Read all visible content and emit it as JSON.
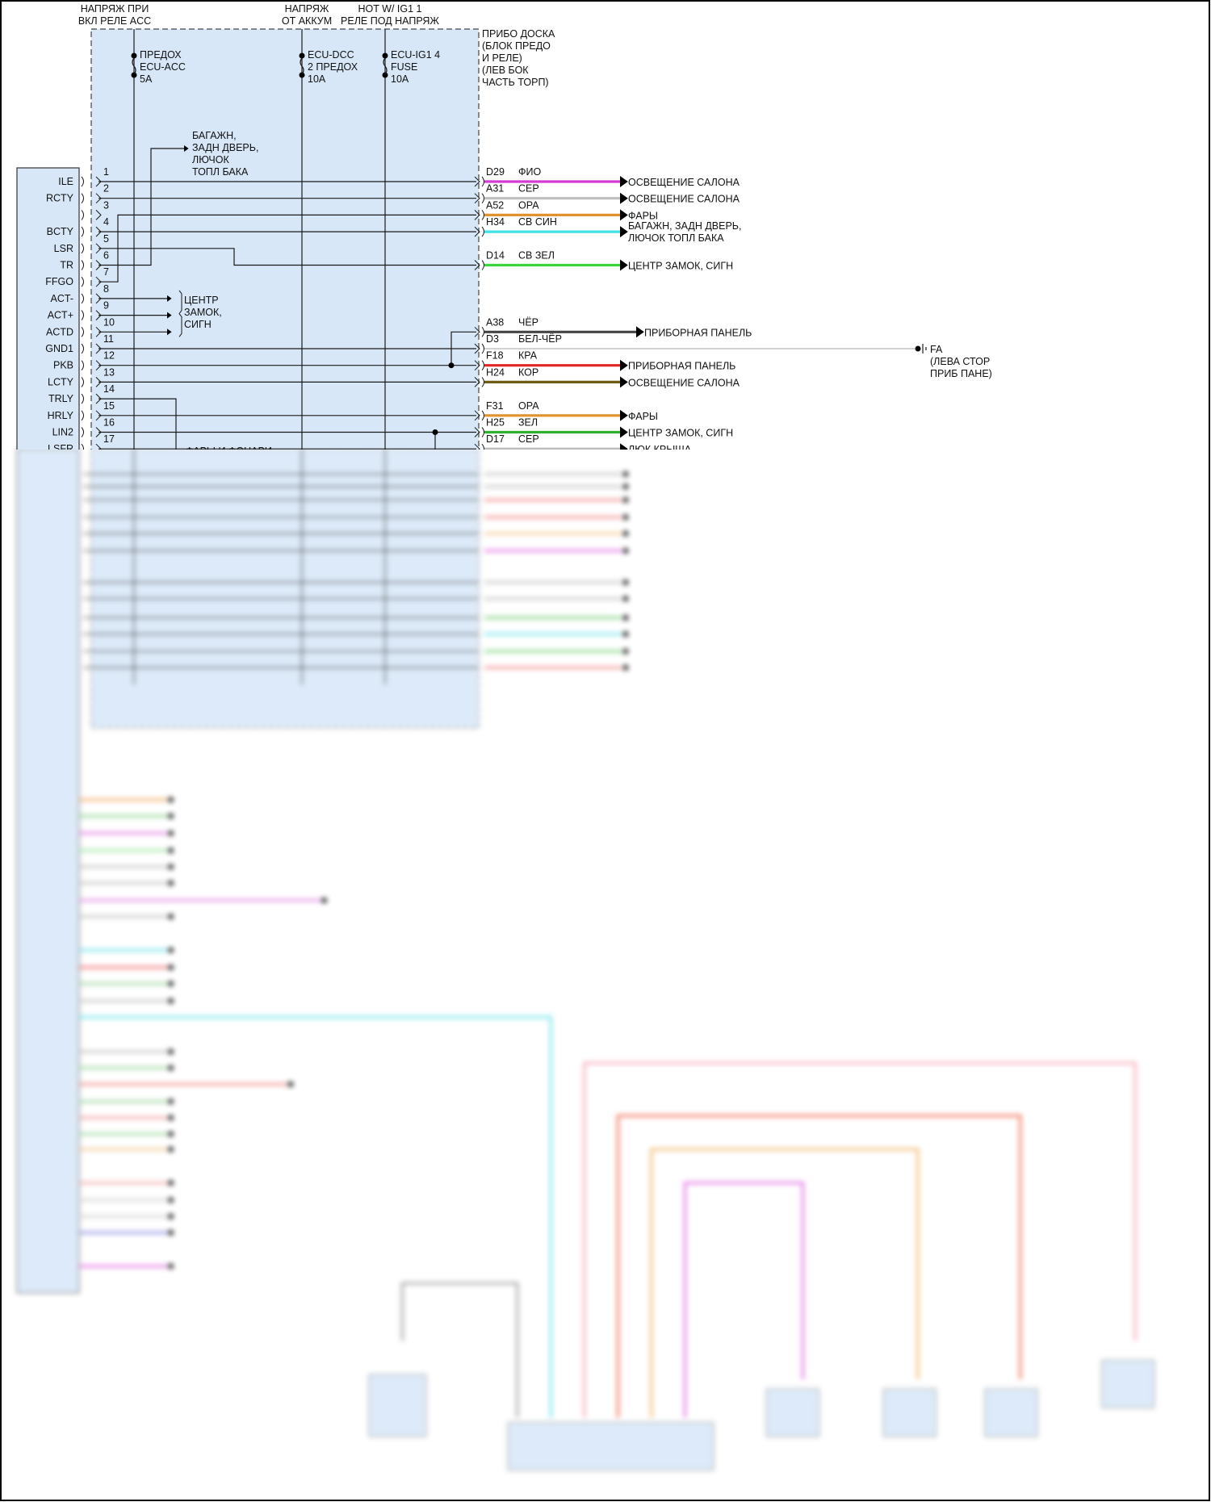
{
  "header": {
    "acc_power": [
      "НАПРЯЖ ПРИ",
      "ВКЛ РЕЛЕ ACC"
    ],
    "battery_power": [
      "НАПРЯЖ",
      "ОТ АККУМ"
    ],
    "ig1_power": [
      "HOT W/ IG1 1",
      "РЕЛЕ ПОД НАПРЯЖ"
    ]
  },
  "fuses": [
    {
      "lines": [
        "ПРЕДОХ",
        "ECU-ACC",
        "5A"
      ]
    },
    {
      "lines": [
        "ECU-DCC",
        "2 ПРЕДОХ",
        "10A"
      ]
    },
    {
      "lines": [
        "ECU-IG1 4",
        "FUSE",
        "10A"
      ]
    }
  ],
  "fuse_block_label": [
    "ПРИБО ДОСКА",
    "(БЛОК ПРЕДО",
    "И РЕЛЕ)",
    "(ЛЕВ БОК",
    "ЧАСТЬ ТОРП)"
  ],
  "internal_labels": {
    "trunk": [
      "БАГАЖН,",
      "ЗАДН ДВЕРЬ,",
      "ЛЮЧОК",
      "ТОПЛ БАКА"
    ],
    "central_lock": [
      "ЦЕНТР",
      "ЗАМОК,",
      "СИГН"
    ],
    "lights": "ФАРЫ И ФОНАРИ"
  },
  "pins": [
    {
      "num": "1",
      "label": "ILE"
    },
    {
      "num": "2",
      "label": "RCTY"
    },
    {
      "num": "3",
      "label": ""
    },
    {
      "num": "4",
      "label": "BCTY"
    },
    {
      "num": "5",
      "label": "LSR"
    },
    {
      "num": "6",
      "label": "TR"
    },
    {
      "num": "7",
      "label": "FFGO"
    },
    {
      "num": "8",
      "label": "ACT-"
    },
    {
      "num": "9",
      "label": "ACT+"
    },
    {
      "num": "10",
      "label": "ACTD"
    },
    {
      "num": "11",
      "label": "GND1"
    },
    {
      "num": "12",
      "label": "PKB"
    },
    {
      "num": "13",
      "label": "LCTY"
    },
    {
      "num": "14",
      "label": "TRLY"
    },
    {
      "num": "15",
      "label": "HRLY"
    },
    {
      "num": "16",
      "label": "LIN2"
    },
    {
      "num": "17",
      "label": "LSFR"
    }
  ],
  "wires": [
    {
      "row": 1,
      "code": "D29",
      "color_name": "ФИО",
      "color": "#d43ad4",
      "dest": [
        "ОСВЕЩЕНИЕ САЛОНА"
      ]
    },
    {
      "row": 2,
      "code": "A31",
      "color_name": "СЕР",
      "color": "#bdbdbd",
      "dest": [
        "ОСВЕЩЕНИЕ САЛОНА"
      ]
    },
    {
      "row": 3,
      "code": "A52",
      "color_name": "ОРА",
      "color": "#e0922e",
      "dest": [
        "ФАРЫ"
      ]
    },
    {
      "row": 4,
      "code": "H34",
      "color_name": "СВ СИН",
      "color": "#3fe0e6",
      "dest": [
        "БАГАЖН, ЗАДН ДВЕРЬ,",
        "ЛЮЧОК ТОПЛ БАКА"
      ]
    },
    {
      "row": 6,
      "code": "D14",
      "color_name": "СВ ЗЕЛ",
      "color": "#3ed43e",
      "dest": [
        "ЦЕНТР ЗАМОК, СИГН"
      ]
    },
    {
      "row": 10,
      "code": "A38",
      "color_name": "ЧЁР",
      "color": "#444444",
      "dest": [
        "ПРИБОРНАЯ ПАНЕЛЬ"
      ]
    },
    {
      "row": 11,
      "code": "D3",
      "color_name": "БЕЛ-ЧЁР",
      "color": "#c4c4c4",
      "dest": []
    },
    {
      "row": 12,
      "code": "F18",
      "color_name": "КРА",
      "color": "#e02424",
      "dest": [
        "ПРИБОРНАЯ ПАНЕЛЬ"
      ]
    },
    {
      "row": 13,
      "code": "H24",
      "color_name": "КОР",
      "color": "#6e5c14",
      "dest": [
        "ОСВЕЩЕНИЕ САЛОНА"
      ]
    },
    {
      "row": 15,
      "code": "F31",
      "color_name": "ОРА",
      "color": "#e0922e",
      "dest": [
        "ФАРЫ"
      ]
    },
    {
      "row": 16,
      "code": "H25",
      "color_name": "ЗЕЛ",
      "color": "#2fb02f",
      "dest": [
        "ЦЕНТР ЗАМОК, СИГН"
      ]
    },
    {
      "row": 17,
      "code": "D17",
      "color_name": "СЕР",
      "color": "#bdbdbd",
      "dest": [
        "ЛЮК КРЫША"
      ]
    }
  ],
  "ground": {
    "name": "FA",
    "location": [
      "(ЛЕВА СТОР",
      "ПРИБ ПАНЕ)"
    ]
  },
  "colors": {
    "block_fill": "#d7e7f8",
    "line": "#1a1a1a"
  }
}
